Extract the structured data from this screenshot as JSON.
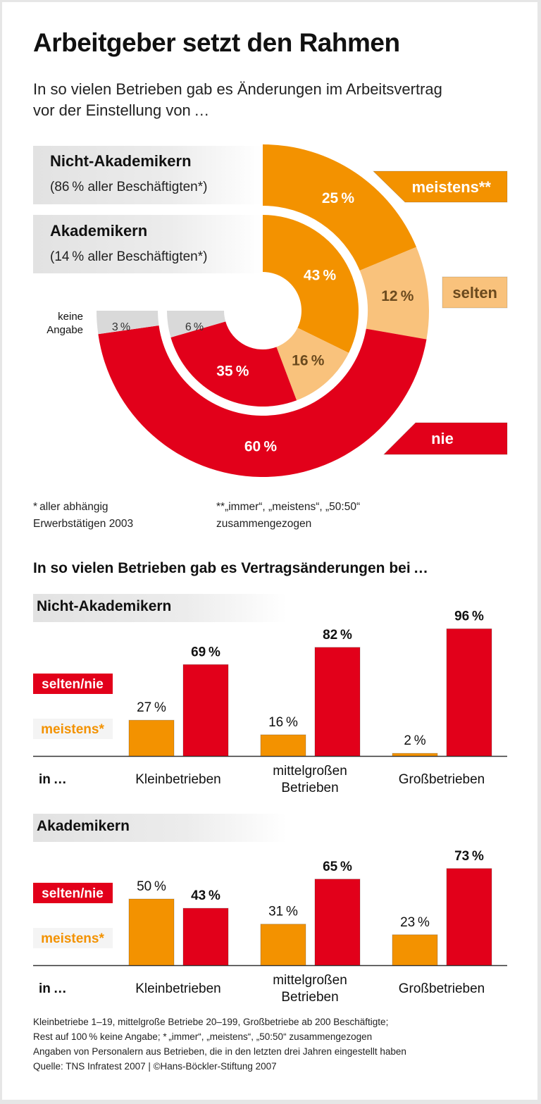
{
  "title": "Arbeitgeber setzt den Rahmen",
  "subtitle": "In so vielen Betrieben gab es Änderungen im Arbeitsvertrag vor der Einstellung von …",
  "donut_groups": [
    {
      "name": "Nicht-Akademikern",
      "note": "(86 % aller Beschäftigten*)"
    },
    {
      "name": "Akademikern",
      "note": "(14 % aller Beschäftigten*)"
    }
  ],
  "donut_legend": {
    "meistens": "meistens**",
    "selten": "selten",
    "nie": "nie",
    "keine": "keine Angabe"
  },
  "footnotes": {
    "left": "* aller abhängig Erwerbstätigen 2003",
    "right": "**„immer“, „meistens“, „50:50“ zusammengezogen"
  },
  "bar_section_title": "In so vielen Betrieben gab es Vertragsänderungen bei …",
  "bar_legend": {
    "selten_nie": "selten/nie",
    "meistens": "meistens*",
    "in": "in …"
  },
  "colors": {
    "meistens": "#f39200",
    "selten": "#f9c27c",
    "nie": "#e2001a",
    "keine": "#d9d9d9"
  },
  "chart_data": [
    {
      "type": "pie",
      "subtype": "concentric-three-quarter-donut",
      "categories": [
        "meistens**",
        "selten",
        "nie",
        "keine Angabe"
      ],
      "series": [
        {
          "name": "Nicht-Akademikern",
          "values": [
            25,
            12,
            60,
            3
          ]
        },
        {
          "name": "Akademikern",
          "values": [
            43,
            16,
            35,
            6
          ]
        }
      ]
    },
    {
      "type": "bar",
      "title": "Nicht-Akademikern",
      "categories": [
        "Kleinbetrieben",
        "mittelgroßen Betrieben",
        "Großbetrieben"
      ],
      "series": [
        {
          "name": "meistens*",
          "values": [
            27,
            16,
            2
          ]
        },
        {
          "name": "selten/nie",
          "values": [
            69,
            82,
            96
          ]
        }
      ]
    },
    {
      "type": "bar",
      "title": "Akademikern",
      "categories": [
        "Kleinbetrieben",
        "mittelgroßen Betrieben",
        "Großbetrieben"
      ],
      "series": [
        {
          "name": "meistens*",
          "values": [
            50,
            31,
            23
          ]
        },
        {
          "name": "selten/nie",
          "values": [
            43,
            65,
            73
          ]
        }
      ]
    }
  ],
  "footer": [
    "Kleinbetriebe 1–19, mittelgroße Betriebe 20–199, Großbetriebe ab 200 Beschäftigte;",
    "Rest auf 100 % keine Angabe; * „immer“, „meistens“, „50:50“ zusammengezogen",
    "Angaben von Personalern aus Betrieben, die in den letzten drei Jahren eingestellt haben",
    "Quelle: TNS Infratest 2007 | ©Hans-Böckler-Stiftung 2007"
  ]
}
